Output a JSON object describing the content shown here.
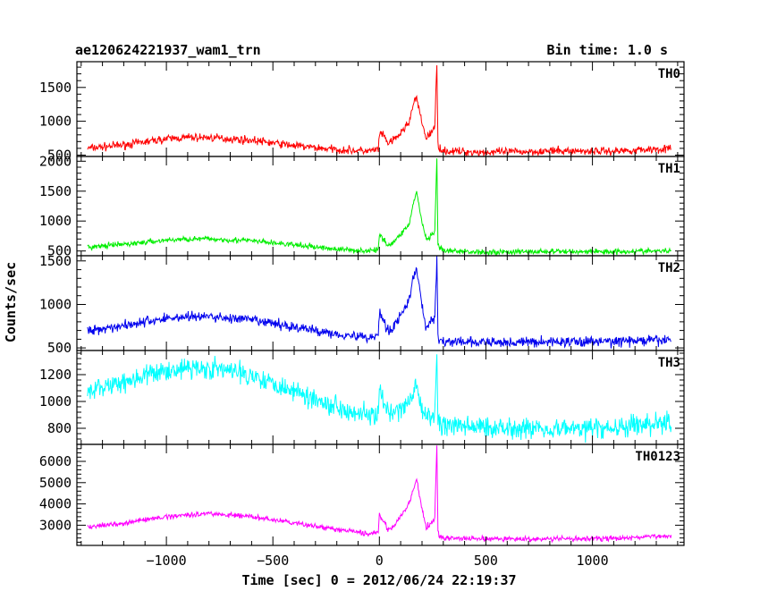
{
  "header": {
    "title": "ae120624221937_wam1_trn",
    "bin_time": "Bin time: 1.0 s"
  },
  "axes": {
    "xlabel": "Time [sec] 0 = 2012/06/24 22:19:37",
    "ylabel": "Counts/sec"
  },
  "chart_data": {
    "type": "line",
    "title": "ae120624221937_wam1_trn",
    "subtitle": "Bin time: 1.0 s",
    "xlabel": "Time [sec] 0 = 2012/06/24 22:19:37",
    "ylabel": "Counts/sec",
    "xlim": [
      -1420,
      1430
    ],
    "x_range_data": [
      -1370,
      1370
    ],
    "xticks": [
      -1000,
      -500,
      0,
      500,
      1000
    ],
    "x_ticklabels": [
      "−1000",
      "−500",
      "0",
      "500",
      "1000"
    ],
    "legend": "per-panel label, top-right",
    "panels": [
      {
        "name": "TH0",
        "color": "#ff0000",
        "ylim": [
          480,
          1880
        ],
        "yticks": [
          500,
          1000,
          1500
        ],
        "y_ticklabels": [
          "500",
          "1000",
          "1500"
        ],
        "x": [
          -1370,
          -1200,
          -1000,
          -900,
          -800,
          -600,
          -400,
          -200,
          -50,
          -5,
          0,
          20,
          40,
          60,
          100,
          140,
          160,
          175,
          190,
          220,
          260,
          270,
          275,
          280,
          300,
          500,
          800,
          1100,
          1370
        ],
        "y": [
          600,
          650,
          740,
          760,
          760,
          720,
          640,
          580,
          560,
          580,
          820,
          780,
          680,
          700,
          820,
          1000,
          1250,
          1350,
          1100,
          750,
          900,
          1850,
          700,
          620,
          560,
          540,
          560,
          560,
          600
        ],
        "noise": 45
      },
      {
        "name": "TH1",
        "color": "#00ee00",
        "ylim": [
          420,
          2080
        ],
        "yticks": [
          500,
          1000,
          1500,
          2000
        ],
        "y_ticklabels": [
          "500",
          "1000",
          "1500",
          "2000"
        ],
        "x": [
          -1370,
          -1200,
          -1000,
          -900,
          -800,
          -600,
          -400,
          -200,
          -50,
          -5,
          0,
          20,
          40,
          60,
          100,
          140,
          160,
          175,
          190,
          220,
          260,
          270,
          275,
          280,
          300,
          500,
          800,
          1100,
          1370
        ],
        "y": [
          560,
          610,
          680,
          700,
          700,
          670,
          600,
          530,
          500,
          520,
          760,
          700,
          600,
          620,
          780,
          950,
          1300,
          1500,
          1150,
          680,
          800,
          2050,
          640,
          560,
          500,
          480,
          490,
          490,
          500
        ],
        "noise": 35
      },
      {
        "name": "TH2",
        "color": "#0000ee",
        "ylim": [
          470,
          1560
        ],
        "yticks": [
          500,
          1000,
          1500
        ],
        "y_ticklabels": [
          "500",
          "1000",
          "1500"
        ],
        "x": [
          -1370,
          -1200,
          -1000,
          -900,
          -800,
          -600,
          -400,
          -200,
          -50,
          -5,
          0,
          20,
          40,
          60,
          100,
          140,
          160,
          175,
          190,
          220,
          260,
          270,
          275,
          280,
          300,
          500,
          800,
          1100,
          1370
        ],
        "y": [
          700,
          760,
          840,
          860,
          860,
          820,
          740,
          660,
          620,
          640,
          920,
          820,
          700,
          720,
          880,
          1050,
          1300,
          1420,
          1150,
          720,
          850,
          1540,
          660,
          600,
          570,
          560,
          570,
          575,
          590
        ],
        "noise": 45
      },
      {
        "name": "TH3",
        "color": "#00ffff",
        "ylim": [
          680,
          1380
        ],
        "yticks": [
          800,
          1000,
          1200
        ],
        "y_ticklabels": [
          "800",
          "1000",
          "1200"
        ],
        "x": [
          -1370,
          -1200,
          -1000,
          -900,
          -800,
          -600,
          -400,
          -200,
          -50,
          -5,
          0,
          20,
          40,
          60,
          100,
          140,
          160,
          175,
          190,
          220,
          260,
          270,
          275,
          280,
          300,
          500,
          800,
          1100,
          1370
        ],
        "y": [
          1080,
          1150,
          1230,
          1250,
          1250,
          1200,
          1080,
          960,
          900,
          900,
          1100,
          980,
          900,
          900,
          940,
          1000,
          1060,
          1150,
          960,
          880,
          900,
          1350,
          860,
          840,
          820,
          810,
          800,
          800,
          850
        ],
        "noise": 60
      },
      {
        "name": "TH0123",
        "color": "#ff00ff",
        "ylim": [
          2050,
          6800
        ],
        "yticks": [
          3000,
          4000,
          5000,
          6000
        ],
        "y_ticklabels": [
          "3000",
          "4000",
          "5000",
          "6000"
        ],
        "x": [
          -1370,
          -1200,
          -1000,
          -900,
          -800,
          -600,
          -400,
          -200,
          -50,
          -5,
          0,
          20,
          40,
          60,
          100,
          140,
          160,
          175,
          190,
          220,
          260,
          270,
          275,
          280,
          300,
          500,
          800,
          1100,
          1370
        ],
        "y": [
          2900,
          3100,
          3400,
          3500,
          3550,
          3400,
          3100,
          2800,
          2600,
          2650,
          3500,
          3200,
          2800,
          2900,
          3400,
          4000,
          4700,
          5200,
          4200,
          2900,
          3300,
          6800,
          2700,
          2500,
          2400,
          2350,
          2350,
          2380,
          2500
        ],
        "noise": 90
      }
    ]
  }
}
